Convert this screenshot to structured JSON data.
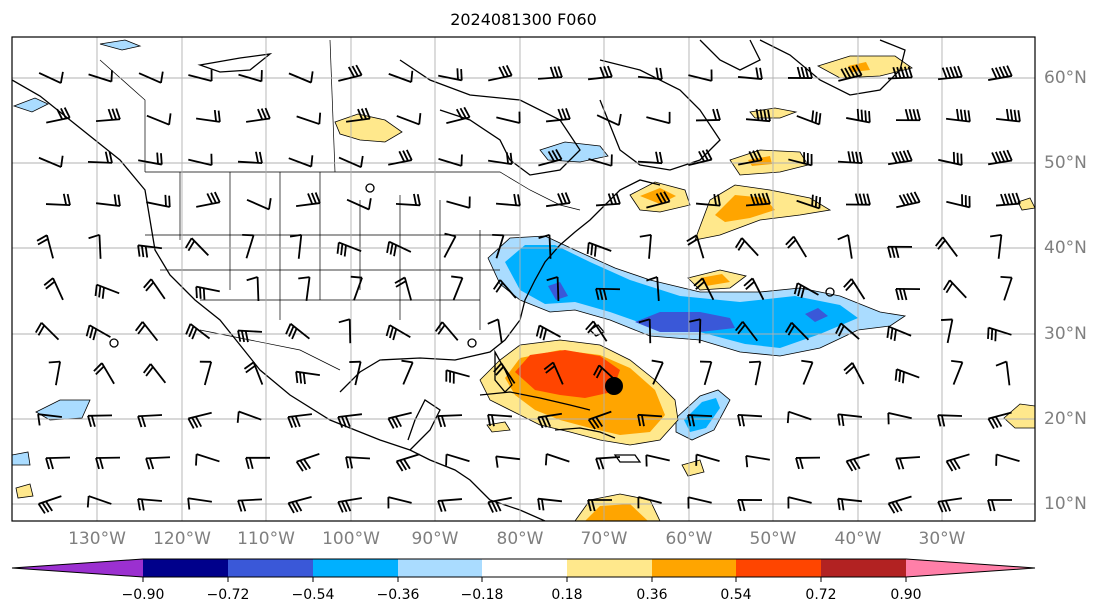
{
  "title": "2024081300 F060",
  "map": {
    "projection": "equirectangular",
    "lon_range": [
      -137,
      -16
    ],
    "lat_range": [
      7,
      66
    ],
    "gridlines": true,
    "lon_labels": [
      "130°W",
      "120°W",
      "110°W",
      "100°W",
      "90°W",
      "80°W",
      "70°W",
      "60°W",
      "50°W",
      "40°W",
      "30°W"
    ],
    "lat_labels": [
      "60°N",
      "50°N",
      "40°N",
      "30°N",
      "20°N",
      "10°N"
    ],
    "storm_center": {
      "lon": -67.5,
      "lat": 23.8
    }
  },
  "colorbar": {
    "ticks": [
      "−0.90",
      "−0.72",
      "−0.54",
      "−0.36",
      "−0.18",
      "0.18",
      "0.36",
      "0.54",
      "0.72",
      "0.90"
    ],
    "colors": {
      "lt_-0.90": "#9b30d0",
      "-0.90_-0.72": "#00008b",
      "-0.72_-0.54": "#3a58d8",
      "-0.54_-0.36": "#00b0ff",
      "-0.36_-0.18": "#aadcff",
      "-0.18_0.18": "#ffffff",
      "0.18_0.36": "#ffe88c",
      "0.36_0.54": "#ffa500",
      "0.54_0.72": "#ff4500",
      "0.72_0.90": "#b22222",
      "gt_0.90": "#ff7fa8"
    },
    "extend": "both"
  }
}
